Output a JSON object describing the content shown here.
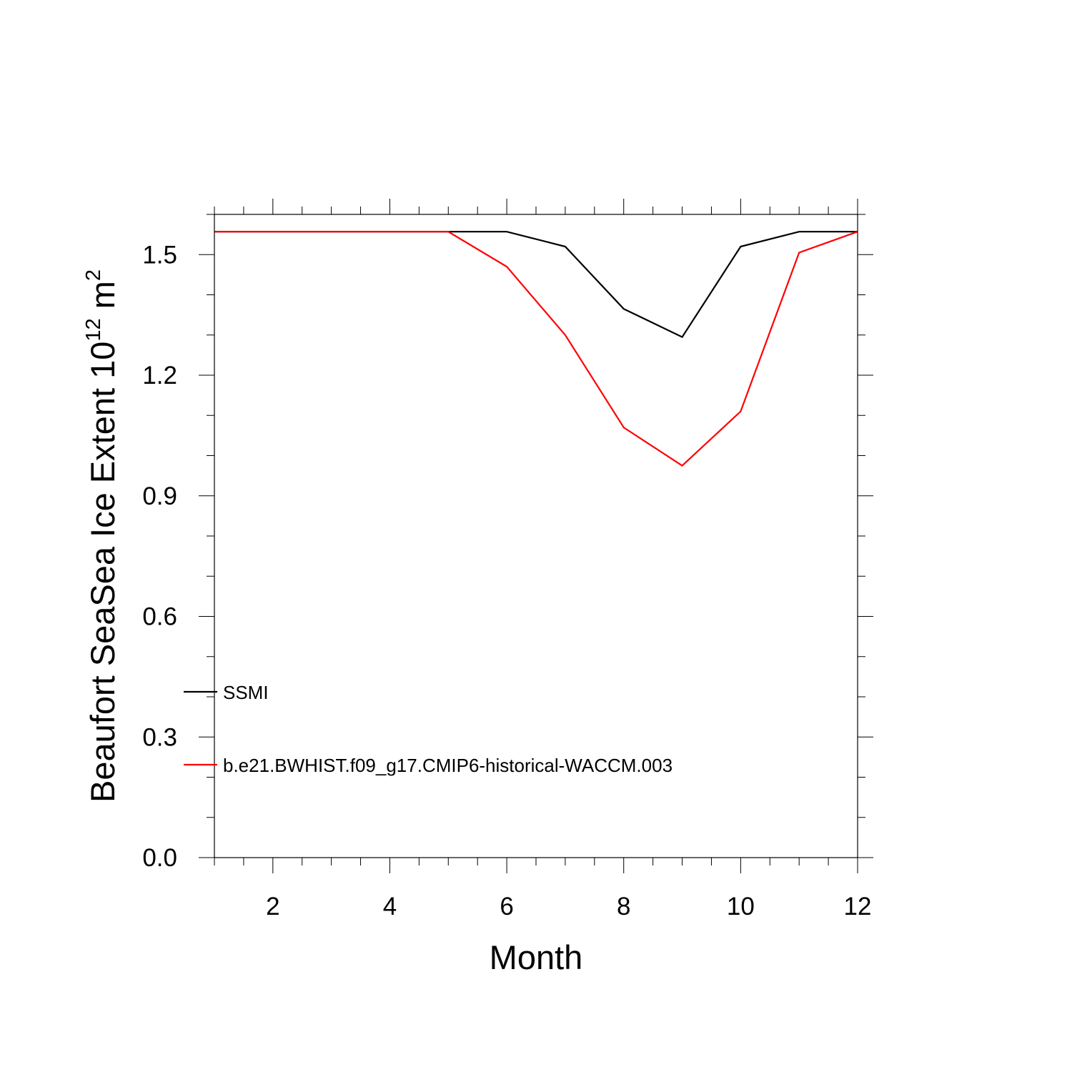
{
  "chart_data": {
    "type": "line",
    "xlabel": "Month",
    "ylabel": {
      "text": "Beaufort SeaSea Ice Extent 10",
      "exponent": "12",
      "unit": " m",
      "unit_exponent": "2"
    },
    "xlim": [
      1,
      12
    ],
    "ylim": [
      0,
      1.6
    ],
    "x_ticks": [
      2,
      4,
      6,
      8,
      10,
      12
    ],
    "x_tick_labels": [
      "2",
      "4",
      "6",
      "8",
      "10",
      "12"
    ],
    "y_ticks": [
      0,
      0.3,
      0.6,
      0.9,
      1.2,
      1.5
    ],
    "y_tick_labels": [
      "0.0",
      "0.3",
      "0.6",
      "0.9",
      "1.2",
      "1.5"
    ],
    "grid": false,
    "legend": "bottom-left",
    "x": [
      1,
      2,
      3,
      4,
      5,
      6,
      7,
      8,
      9,
      10,
      11,
      12
    ],
    "series": [
      {
        "name": "SSMI",
        "color": "#000000",
        "values": [
          1.557,
          1.557,
          1.557,
          1.557,
          1.557,
          1.557,
          1.52,
          1.365,
          1.295,
          1.52,
          1.557,
          1.557
        ]
      },
      {
        "name": "b.e21.BWHIST.f09_g17.CMIP6-historical-WACCM.003",
        "color": "#ff0000",
        "values": [
          1.557,
          1.557,
          1.557,
          1.557,
          1.557,
          1.47,
          1.3,
          1.07,
          0.975,
          1.11,
          1.505,
          1.557
        ]
      }
    ]
  }
}
